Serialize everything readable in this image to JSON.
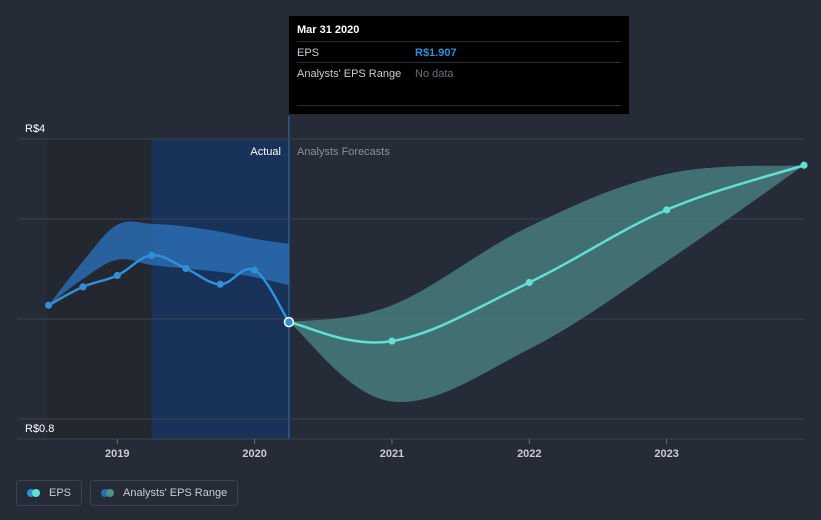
{
  "colors": {
    "background": "#252b37",
    "eps_actual": "#2f8fd8",
    "eps_forecast": "#5fe0d2",
    "actual_band": "#2a6cb3",
    "forecast_band": "#4f8f8c",
    "actual_region": "#18325a"
  },
  "tooltip": {
    "date": "Mar 31 2020",
    "eps_label": "EPS",
    "eps_value": "R$1.907",
    "range_label": "Analysts' EPS Range",
    "range_value": "No data"
  },
  "legend": {
    "eps_label": "EPS",
    "range_label": "Analysts' EPS Range"
  },
  "chart_data": {
    "type": "line",
    "title": "",
    "xlabel": "",
    "ylabel": "",
    "y_axis_labels": [
      "R$4",
      "R$0.8"
    ],
    "x_tick_labels": [
      "2019",
      "2020",
      "2021",
      "2022",
      "2023"
    ],
    "x_ticks": [
      2019.0,
      2020.0,
      2021.0,
      2022.0,
      2023.0
    ],
    "xlim": [
      2018.27,
      2024.0
    ],
    "ylim": [
      0.8,
      4.0
    ],
    "divider_x": 2020.25,
    "actual_label": "Actual",
    "forecast_label": "Analysts Forecasts",
    "grid": true,
    "series": [
      {
        "name": "EPS",
        "kind": "actual",
        "x": [
          2018.5,
          2018.75,
          2019.0,
          2019.25,
          2019.5,
          2019.75,
          2020.0,
          2020.25
        ],
        "y": [
          2.1,
          2.31,
          2.44,
          2.67,
          2.52,
          2.34,
          2.5,
          1.907
        ]
      },
      {
        "name": "EPS",
        "kind": "forecast",
        "x": [
          2020.25,
          2021.0,
          2022.0,
          2023.0,
          2024.0
        ],
        "y": [
          1.907,
          1.69,
          2.36,
          3.19,
          3.7
        ]
      }
    ],
    "ranges": [
      {
        "name": "Analysts' EPS Range",
        "kind": "actual",
        "x": [
          2018.5,
          2018.75,
          2019.0,
          2019.25,
          2019.5,
          2019.75,
          2020.0,
          2020.25
        ],
        "low": [
          2.1,
          2.4,
          2.62,
          2.56,
          2.52,
          2.48,
          2.42,
          2.33
        ],
        "high": [
          2.1,
          2.6,
          3.02,
          3.03,
          3.0,
          2.94,
          2.86,
          2.8
        ]
      },
      {
        "name": "Analysts' EPS Range",
        "kind": "forecast",
        "x": [
          2020.25,
          2021.0,
          2022.0,
          2023.0,
          2024.0
        ],
        "low": [
          1.907,
          1.0,
          1.6,
          2.6,
          3.7
        ],
        "high": [
          1.907,
          2.1,
          3.0,
          3.6,
          3.7
        ]
      }
    ]
  }
}
